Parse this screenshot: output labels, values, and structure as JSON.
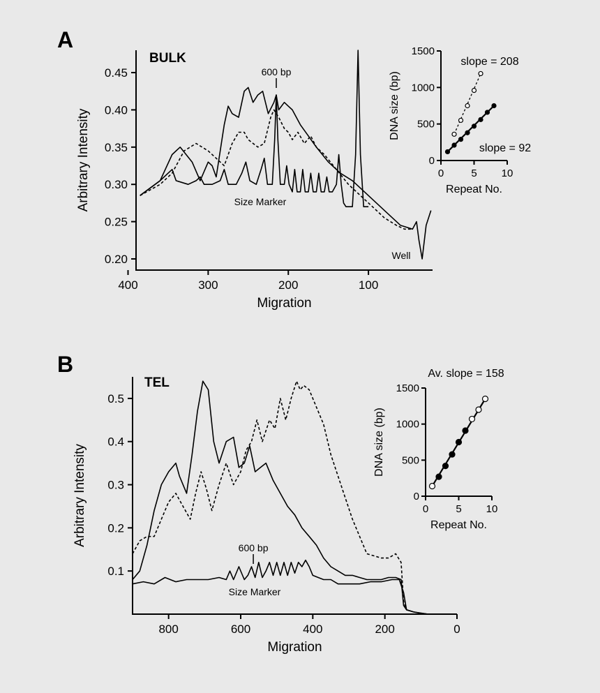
{
  "chart_data": [
    {
      "panel": "A",
      "tag": "BULK",
      "type": "line",
      "xlabel": "Migration",
      "ylabel": "Arbitrary  Intensity",
      "xlim": [
        390,
        20
      ],
      "ylim": [
        0.185,
        0.48
      ],
      "x_ticks": [
        400,
        300,
        200,
        100
      ],
      "y_ticks": [
        0.2,
        0.25,
        0.3,
        0.35,
        0.4,
        0.45
      ],
      "y_tick_labels": [
        "0.20",
        "0.25",
        "0.30",
        "0.35",
        "0.40",
        "0.45"
      ],
      "annotations": {
        "marker": "600 bp",
        "marker_x": 215,
        "size_marker": "Size Marker",
        "well": "Well"
      },
      "series": [
        {
          "style": "solid",
          "x": [
            385,
            360,
            345,
            335,
            320,
            310,
            300,
            295,
            290,
            280,
            275,
            270,
            262,
            255,
            250,
            244,
            238,
            232,
            225,
            218,
            215,
            212,
            205,
            200,
            195,
            185,
            175,
            165,
            150,
            135,
            120,
            105,
            90,
            75,
            60,
            45,
            40,
            37,
            33,
            28,
            22
          ],
          "y": [
            0.285,
            0.305,
            0.34,
            0.35,
            0.33,
            0.305,
            0.33,
            0.325,
            0.31,
            0.38,
            0.405,
            0.395,
            0.39,
            0.425,
            0.43,
            0.41,
            0.42,
            0.425,
            0.395,
            0.41,
            0.42,
            0.4,
            0.41,
            0.405,
            0.4,
            0.38,
            0.365,
            0.35,
            0.33,
            0.315,
            0.305,
            0.29,
            0.275,
            0.26,
            0.245,
            0.24,
            0.25,
            0.225,
            0.2,
            0.245,
            0.265
          ]
        },
        {
          "style": "dashed",
          "x": [
            385,
            360,
            345,
            330,
            315,
            300,
            290,
            280,
            275,
            270,
            262,
            255,
            250,
            244,
            238,
            230,
            222,
            218,
            212,
            205,
            200,
            195,
            188,
            180,
            172,
            165,
            155,
            140,
            125,
            110,
            95,
            80,
            65,
            55,
            45
          ],
          "y": [
            0.285,
            0.3,
            0.315,
            0.345,
            0.355,
            0.345,
            0.335,
            0.325,
            0.34,
            0.355,
            0.37,
            0.37,
            0.36,
            0.355,
            0.35,
            0.355,
            0.39,
            0.4,
            0.39,
            0.375,
            0.37,
            0.36,
            0.37,
            0.355,
            0.365,
            0.35,
            0.34,
            0.32,
            0.3,
            0.285,
            0.27,
            0.255,
            0.245,
            0.24,
            0.24
          ]
        },
        {
          "style": "solid",
          "name": "Size Marker",
          "x": [
            385,
            360,
            350,
            345,
            340,
            325,
            315,
            310,
            305,
            295,
            285,
            280,
            275,
            265,
            258,
            253,
            248,
            240,
            234,
            230,
            226,
            220,
            217,
            215,
            213,
            210,
            205,
            202,
            199,
            195,
            192,
            189,
            185,
            182,
            179,
            175,
            172,
            169,
            165,
            162,
            159,
            155,
            152,
            149,
            145,
            140,
            137,
            134,
            131,
            128,
            120,
            116,
            113,
            110,
            106,
            100
          ],
          "y": [
            0.285,
            0.305,
            0.315,
            0.32,
            0.305,
            0.3,
            0.305,
            0.31,
            0.3,
            0.3,
            0.305,
            0.32,
            0.3,
            0.3,
            0.315,
            0.33,
            0.305,
            0.3,
            0.32,
            0.335,
            0.3,
            0.3,
            0.36,
            0.42,
            0.36,
            0.3,
            0.3,
            0.325,
            0.3,
            0.29,
            0.32,
            0.29,
            0.29,
            0.32,
            0.29,
            0.29,
            0.315,
            0.29,
            0.29,
            0.315,
            0.29,
            0.29,
            0.31,
            0.29,
            0.29,
            0.3,
            0.34,
            0.3,
            0.275,
            0.27,
            0.27,
            0.34,
            0.48,
            0.34,
            0.27,
            0.27
          ]
        }
      ],
      "inset": {
        "type": "scatter",
        "xlabel": "Repeat No.",
        "ylabel": "DNA size (bp)",
        "xlim": [
          0,
          10
        ],
        "ylim": [
          0,
          1500
        ],
        "x_ticks": [
          0,
          5,
          10
        ],
        "y_ticks": [
          0,
          500,
          1000,
          1500
        ],
        "annotations": [
          "slope = 208",
          "slope = 92"
        ],
        "series": [
          {
            "style": "dashed",
            "marker": "open",
            "x": [
              2,
              3,
              4,
              5,
              6
            ],
            "y": [
              360,
              550,
              750,
              960,
              1190
            ]
          },
          {
            "style": "solid",
            "marker": "filled",
            "x": [
              1,
              2,
              3,
              4,
              5,
              6,
              7,
              8
            ],
            "y": [
              120,
              210,
              290,
              380,
              470,
              560,
              660,
              750
            ]
          }
        ]
      }
    },
    {
      "panel": "B",
      "tag": "TEL",
      "type": "line",
      "xlabel": "Migration",
      "ylabel": "Arbitrary  Intensity",
      "xlim": [
        900,
        0
      ],
      "ylim": [
        0.0,
        0.55
      ],
      "x_ticks": [
        800,
        600,
        400,
        200,
        0
      ],
      "y_ticks": [
        0.1,
        0.2,
        0.3,
        0.4,
        0.5
      ],
      "y_tick_labels": [
        "0.1",
        "0.2",
        "0.3",
        "0.4",
        "0.5"
      ],
      "annotations": {
        "marker": "600 bp",
        "marker_x": 565,
        "size_marker": "Size Marker"
      },
      "series": [
        {
          "style": "solid",
          "x": [
            900,
            880,
            860,
            840,
            820,
            800,
            780,
            770,
            750,
            735,
            720,
            705,
            690,
            675,
            660,
            640,
            620,
            605,
            590,
            575,
            560,
            545,
            530,
            510,
            490,
            470,
            450,
            430,
            410,
            390,
            370,
            350,
            330,
            310,
            290,
            270,
            250,
            230,
            210,
            190,
            170,
            155,
            148,
            140,
            120,
            100,
            80
          ],
          "y": [
            0.08,
            0.1,
            0.16,
            0.24,
            0.3,
            0.33,
            0.35,
            0.32,
            0.28,
            0.37,
            0.47,
            0.54,
            0.52,
            0.4,
            0.35,
            0.4,
            0.41,
            0.34,
            0.35,
            0.39,
            0.33,
            0.34,
            0.35,
            0.31,
            0.28,
            0.25,
            0.23,
            0.2,
            0.18,
            0.16,
            0.13,
            0.11,
            0.1,
            0.09,
            0.09,
            0.085,
            0.08,
            0.08,
            0.08,
            0.085,
            0.085,
            0.08,
            0.02,
            0.01,
            0.005,
            0.002,
            0.0
          ]
        },
        {
          "style": "dashed",
          "x": [
            900,
            880,
            860,
            840,
            820,
            800,
            780,
            760,
            740,
            725,
            710,
            695,
            680,
            660,
            640,
            620,
            600,
            585,
            570,
            555,
            540,
            520,
            505,
            490,
            475,
            460,
            445,
            435,
            425,
            410,
            390,
            370,
            350,
            330,
            310,
            290,
            270,
            250,
            230,
            210,
            190,
            170,
            155,
            148,
            140
          ],
          "y": [
            0.14,
            0.17,
            0.18,
            0.18,
            0.22,
            0.26,
            0.28,
            0.25,
            0.22,
            0.28,
            0.33,
            0.29,
            0.24,
            0.3,
            0.35,
            0.3,
            0.33,
            0.38,
            0.4,
            0.45,
            0.4,
            0.45,
            0.43,
            0.5,
            0.45,
            0.5,
            0.54,
            0.52,
            0.53,
            0.52,
            0.48,
            0.44,
            0.37,
            0.32,
            0.27,
            0.22,
            0.18,
            0.14,
            0.135,
            0.13,
            0.13,
            0.14,
            0.12,
            0.03,
            0.01
          ]
        },
        {
          "style": "solid",
          "name": "Size Marker",
          "x": [
            900,
            870,
            840,
            810,
            780,
            750,
            720,
            690,
            660,
            640,
            630,
            620,
            605,
            590,
            580,
            570,
            560,
            550,
            540,
            530,
            520,
            510,
            500,
            490,
            480,
            470,
            460,
            450,
            440,
            430,
            420,
            410,
            400,
            385,
            370,
            350,
            330,
            300,
            270,
            240,
            210,
            180,
            160,
            148,
            140,
            120,
            80
          ],
          "y": [
            0.07,
            0.075,
            0.07,
            0.085,
            0.075,
            0.08,
            0.08,
            0.08,
            0.085,
            0.08,
            0.1,
            0.08,
            0.11,
            0.08,
            0.09,
            0.11,
            0.085,
            0.12,
            0.085,
            0.1,
            0.12,
            0.09,
            0.12,
            0.09,
            0.12,
            0.09,
            0.12,
            0.095,
            0.12,
            0.11,
            0.125,
            0.11,
            0.09,
            0.085,
            0.08,
            0.08,
            0.07,
            0.07,
            0.07,
            0.075,
            0.075,
            0.08,
            0.08,
            0.05,
            0.01,
            0.005,
            0.0
          ]
        }
      ],
      "inset": {
        "type": "scatter",
        "title": "Av. slope = 158",
        "xlabel": "Repeat No.",
        "ylabel": "DNA size (bp)",
        "xlim": [
          0,
          10
        ],
        "ylim": [
          0,
          1500
        ],
        "x_ticks": [
          0,
          5,
          10
        ],
        "y_ticks": [
          0,
          500,
          1000,
          1500
        ],
        "series": [
          {
            "style": "solid",
            "marker": "mixed",
            "x": [
              1,
              2,
              3,
              4,
              5,
              6,
              7,
              8,
              9
            ],
            "y": [
              140,
              270,
              420,
              580,
              750,
              910,
              1070,
              1200,
              1350
            ]
          }
        ]
      }
    }
  ]
}
